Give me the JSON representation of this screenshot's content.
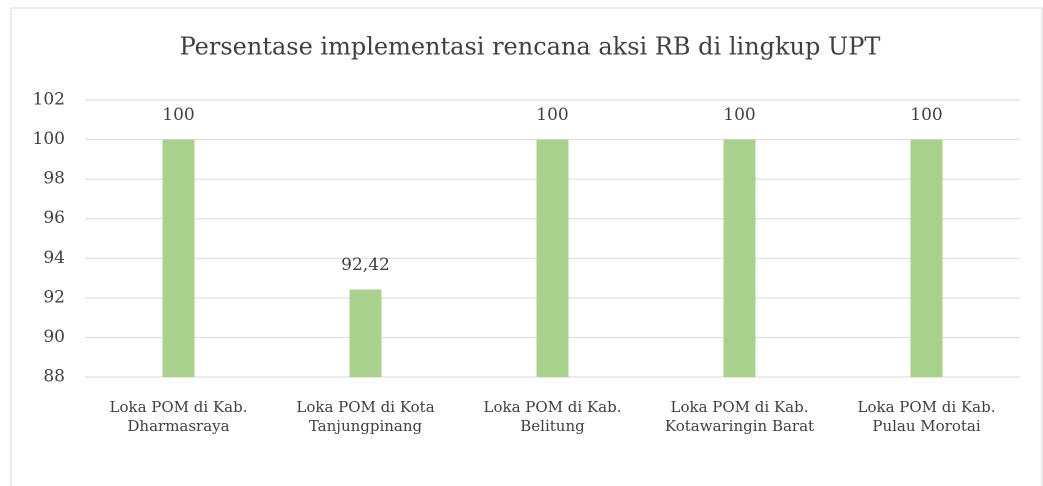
{
  "chart_data": {
    "type": "bar",
    "title": "Persentase implementasi rencana aksi RB di lingkup UPT",
    "categories": [
      "Loka POM di Kab. Dharmasraya",
      "Loka POM di Kota Tanjungpinang",
      "Loka POM di Kab. Belitung",
      "Loka POM di Kab. Kotawaringin Barat",
      "Loka POM di Kab. Pulau Morotai"
    ],
    "values": [
      100,
      92.42,
      100,
      100,
      100
    ],
    "value_labels": [
      "100",
      "92,42",
      "100",
      "100",
      "100"
    ],
    "color": "#a9d18e",
    "ylim": [
      88,
      102
    ],
    "yticks": [
      88,
      90,
      92,
      94,
      96,
      98,
      100,
      102
    ],
    "grid": true
  }
}
